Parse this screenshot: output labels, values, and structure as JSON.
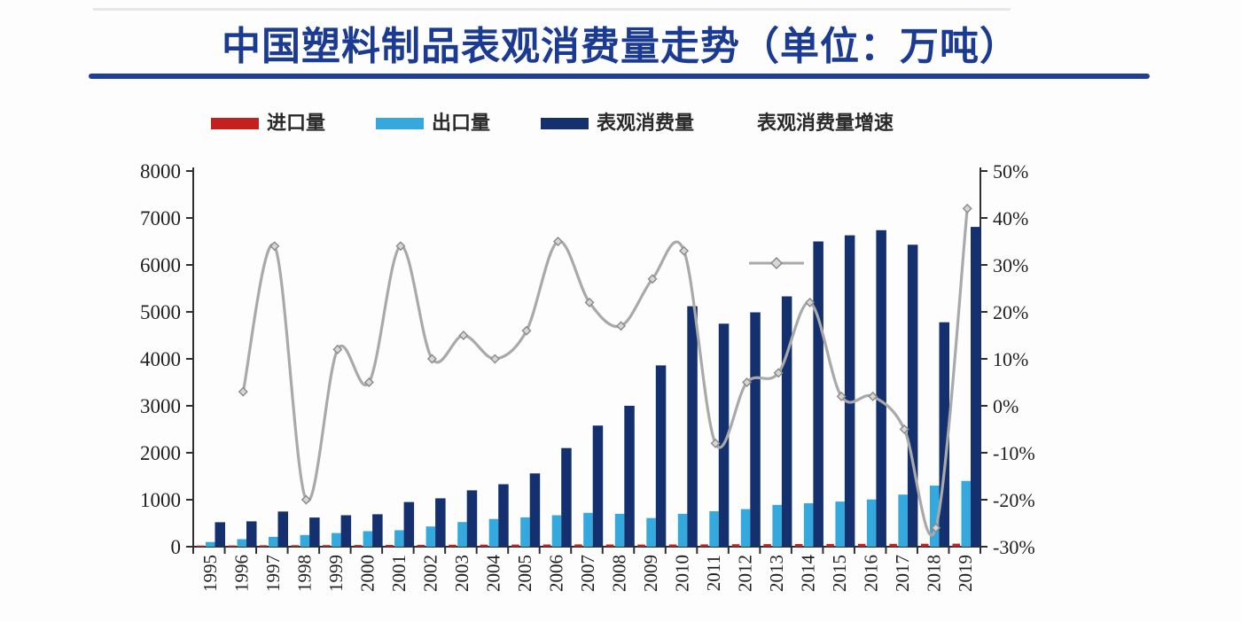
{
  "title": {
    "text": "中国塑料制品表观消费量走势（单位：万吨）",
    "color": "#1b3a92"
  },
  "underline_color": "#1d3e99",
  "legend": {
    "items": [
      {
        "label": "进口量",
        "swatch": "bar-swatch",
        "color": "#c52020"
      },
      {
        "label": "出口量",
        "swatch": "bar-swatch",
        "color": "#35a8dd"
      },
      {
        "label": "表观消费量",
        "swatch": "bar-swatch",
        "color": "#15306e"
      },
      {
        "label": "表观消费量增速",
        "swatch": "line-diamond-swatch",
        "color": "#a9a9a9"
      }
    ]
  },
  "chart_data": {
    "type": "bar",
    "subtype": "grouped-bars-with-growth-line",
    "title": "中国塑料制品表观消费量走势（单位：万吨）",
    "categories": [
      "1995",
      "1996",
      "1997",
      "1998",
      "1999",
      "2000",
      "2001",
      "2002",
      "2003",
      "2004",
      "2005",
      "2006",
      "2007",
      "2008",
      "2009",
      "2010",
      "2011",
      "2012",
      "2013",
      "2014",
      "2015",
      "2016",
      "2017",
      "2018",
      "2019"
    ],
    "series": [
      {
        "name": "进口量",
        "type": "bar",
        "axis": "left",
        "color": "#c52020",
        "values": [
          25,
          27,
          30,
          32,
          34,
          36,
          38,
          40,
          42,
          44,
          46,
          48,
          50,
          48,
          46,
          48,
          50,
          52,
          54,
          56,
          58,
          60,
          60,
          62,
          64
        ]
      },
      {
        "name": "出口量",
        "type": "bar",
        "axis": "left",
        "color": "#35a8dd",
        "values": [
          100,
          160,
          210,
          250,
          290,
          330,
          350,
          430,
          525,
          590,
          625,
          670,
          720,
          700,
          610,
          700,
          755,
          800,
          890,
          925,
          960,
          1005,
          1110,
          1300,
          1400
        ]
      },
      {
        "name": "表观消费量",
        "type": "bar",
        "axis": "left",
        "color": "#15306e",
        "values": [
          520,
          540,
          750,
          620,
          670,
          690,
          950,
          1030,
          1200,
          1330,
          1560,
          2100,
          2580,
          3000,
          3860,
          5120,
          4750,
          4990,
          5330,
          6500,
          6630,
          6740,
          6430,
          4780,
          6810
        ]
      },
      {
        "name": "表观消费量增速",
        "type": "line",
        "axis": "right",
        "color": "#a9a9a9",
        "marker": "diamond",
        "values": [
          null,
          3,
          34,
          -20,
          12,
          5,
          34,
          10,
          15,
          10,
          16,
          35,
          22,
          17,
          27,
          33,
          -8,
          5,
          7,
          22,
          2,
          2,
          -5,
          -26,
          42
        ]
      }
    ],
    "left_axis": {
      "min": 0,
      "max": 8000,
      "step": 1000,
      "ticks": [
        "0",
        "1000",
        "2000",
        "3000",
        "4000",
        "5000",
        "6000",
        "7000",
        "8000"
      ]
    },
    "right_axis": {
      "min": -30,
      "max": 50,
      "step": 10,
      "unit": "%",
      "ticks": [
        "-30%",
        "-20%",
        "-10%",
        "0%",
        "10%",
        "20%",
        "30%",
        "40%",
        "50%"
      ]
    },
    "grid": false,
    "legend_position": "top",
    "x_label_rotation": -90
  }
}
